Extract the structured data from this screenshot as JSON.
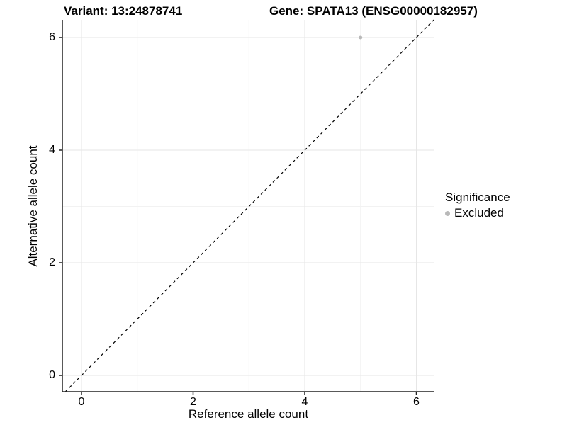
{
  "titles": {
    "variant": "Variant: 13:24878741",
    "gene": "Gene: SPATA13 (ENSG00000182957)"
  },
  "chart_data": {
    "type": "scatter",
    "title_left": "Variant: 13:24878741",
    "title_right": "Gene: SPATA13 (ENSG00000182957)",
    "xlabel": "Reference allele count",
    "ylabel": "Alternative allele count",
    "xlim": [
      -0.343,
      6.324
    ],
    "ylim": [
      -0.289,
      6.314
    ],
    "x_ticks": [
      0,
      2,
      4,
      6
    ],
    "y_ticks": [
      0,
      2,
      4,
      6
    ],
    "x_minor_ticks": [
      1,
      3,
      5
    ],
    "y_minor_ticks": [
      1,
      3,
      5
    ],
    "grid": "on",
    "series": [
      {
        "name": "Excluded",
        "color": "#b9b9b9",
        "points": [
          {
            "x": 5,
            "y": 6
          }
        ]
      }
    ],
    "reference_line": {
      "kind": "identity y=x",
      "style": "dashed",
      "color": "#000000"
    },
    "legend": {
      "title": "Significance",
      "position": "right",
      "entries": [
        {
          "label": "Excluded",
          "color": "#b9b9b9"
        }
      ]
    }
  },
  "colors": {
    "background": "#ffffff",
    "grid_major": "#e6e6e6",
    "grid_minor": "#f2f2f2",
    "axis_line": "#222222",
    "tick_mark": "#222222",
    "text": "#000000",
    "point": "#b9b9b9",
    "reference_line": "#000000"
  }
}
